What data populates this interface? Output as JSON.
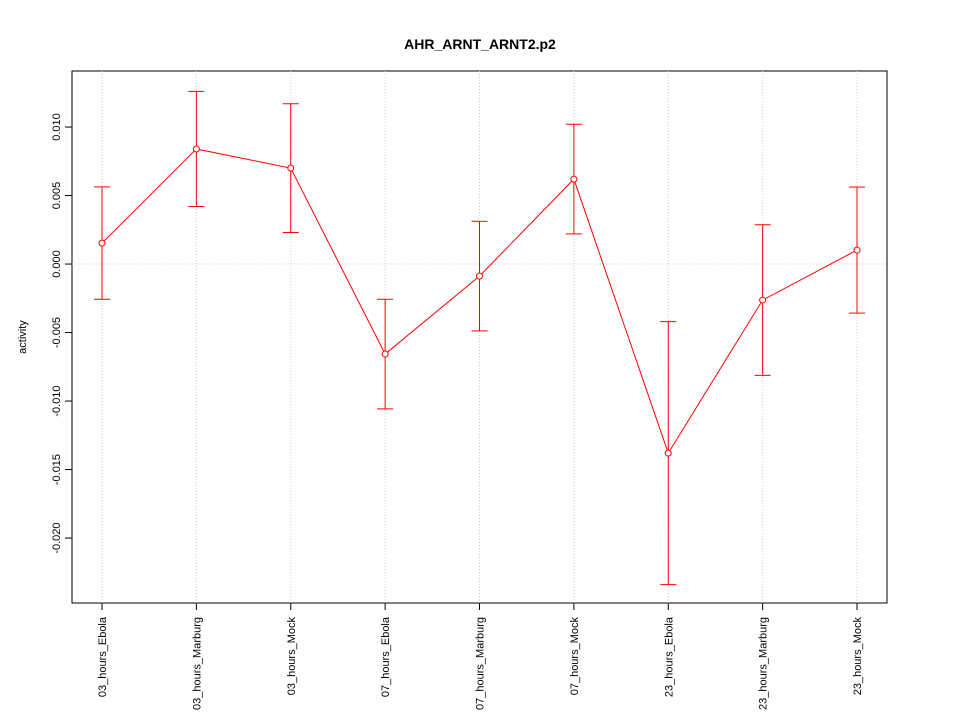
{
  "chart_data": {
    "type": "line",
    "title": "AHR_ARNT_ARNT2.p2",
    "y_label": "activity",
    "categories": [
      "03_hours_Ebola",
      "03_hours_Marburg",
      "03_hours_Mock",
      "07_hours_Ebola",
      "07_hours_Marburg",
      "07_hours_Mock",
      "23_hours_Ebola",
      "23_hours_Marburg",
      "23_hours_Mock"
    ],
    "series": [
      {
        "color": "#ff0000",
        "values": [
          0.00153,
          0.0084,
          0.007,
          -0.00657,
          -0.00088,
          0.0062,
          -0.0138,
          -0.00263,
          0.00102
        ],
        "errors": [
          0.0041,
          0.0042,
          0.0047,
          0.004,
          0.004,
          0.004,
          0.0096,
          0.0055,
          0.0046
        ]
      }
    ],
    "ylim": [
      -0.02474,
      0.01409
    ],
    "yticks": [
      {
        "value": -0.02,
        "label": "-0.020"
      },
      -0.015,
      {
        "value": -0.01,
        "label": "-0.010"
      },
      -0.005,
      {
        "value": 0,
        "label": "0.000"
      },
      0.005,
      {
        "value": 0.01,
        "label": "0.010"
      }
    ],
    "hline": 0,
    "grid": true
  }
}
